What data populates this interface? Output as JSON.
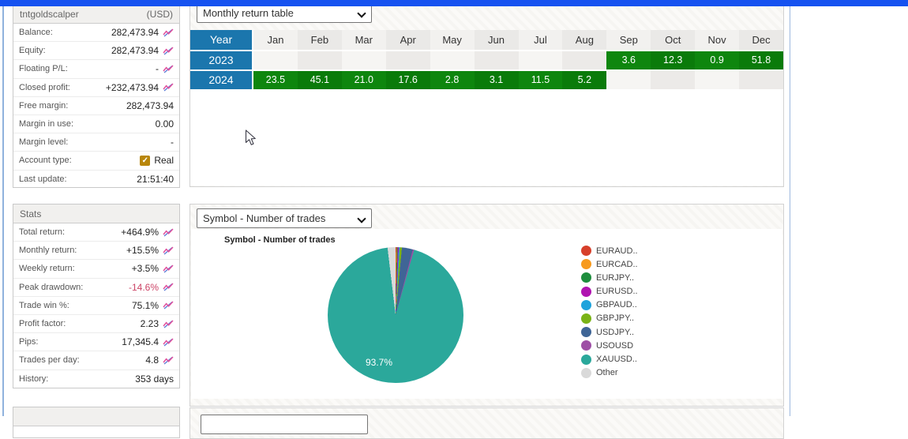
{
  "window": {
    "top_bar_color": "#1652f0"
  },
  "sidebar": {
    "account": {
      "title": "tntgoldscalper",
      "currency": "(USD)",
      "rows": [
        {
          "label": "Balance:",
          "value": "282,473.94",
          "icon": true
        },
        {
          "label": "Equity:",
          "value": "282,473.94",
          "icon": true
        },
        {
          "label": "Floating P/L:",
          "value": "-",
          "icon": true
        },
        {
          "label": "Closed profit:",
          "value": "+232,473.94",
          "icon": true
        },
        {
          "label": "Free margin:",
          "value": "282,473.94",
          "icon": false
        },
        {
          "label": "Margin in use:",
          "value": "0.00",
          "icon": false
        },
        {
          "label": "Margin level:",
          "value": "-",
          "icon": false
        },
        {
          "label": "Account type:",
          "value": "Real",
          "icon": false,
          "checkbox": true
        },
        {
          "label": "Last update:",
          "value": "21:51:40",
          "icon": false
        }
      ]
    },
    "stats": {
      "title": "Stats",
      "rows": [
        {
          "label": "Total return:",
          "value": "+464.9%",
          "icon": true
        },
        {
          "label": "Monthly return:",
          "value": "+15.5%",
          "icon": true
        },
        {
          "label": "Weekly return:",
          "value": "+3.5%",
          "icon": true
        },
        {
          "label": "Peak drawdown:",
          "value": "-14.6%",
          "icon": true,
          "value_color": "#cc4466"
        },
        {
          "label": "Trade win %:",
          "value": "75.1%",
          "icon": true
        },
        {
          "label": "Profit factor:",
          "value": "2.23",
          "icon": true
        },
        {
          "label": "Pips:",
          "value": "17,345.4",
          "icon": true
        },
        {
          "label": "Trades per day:",
          "value": "4.8",
          "icon": true
        },
        {
          "label": "History:",
          "value": "353 days",
          "icon": false
        }
      ]
    }
  },
  "main": {
    "section1": {
      "dropdown_value": "Monthly return table",
      "table": {
        "columns": [
          "Year",
          "Jan",
          "Feb",
          "Mar",
          "Apr",
          "May",
          "Jun",
          "Jul",
          "Aug",
          "Sep",
          "Oct",
          "Nov",
          "Dec"
        ],
        "rows": [
          {
            "year": "2023",
            "values": [
              null,
              null,
              null,
              null,
              null,
              null,
              null,
              null,
              "3.6",
              "12.3",
              "0.9",
              "51.8"
            ]
          },
          {
            "year": "2024",
            "values": [
              "23.5",
              "45.1",
              "21.0",
              "17.6",
              "2.8",
              "3.1",
              "11.5",
              "5.2",
              null,
              null,
              null,
              null
            ]
          }
        ],
        "year_header_color": "#1b76ad",
        "positive_cell_color": "#0c820c"
      }
    },
    "section2": {
      "dropdown_value": "Symbol - Number of trades",
      "chart_title": "Symbol - Number of trades",
      "pie_center_label": "93.7%",
      "legend": [
        {
          "label": "EURAUD..",
          "color": "#d7402b"
        },
        {
          "label": "EURCAD..",
          "color": "#f79a1e"
        },
        {
          "label": "EURJPY..",
          "color": "#1e8e3e"
        },
        {
          "label": "EURUSD..",
          "color": "#b014b0"
        },
        {
          "label": "GBPAUD..",
          "color": "#1fa3dc"
        },
        {
          "label": "GBPJPY..",
          "color": "#7ab317"
        },
        {
          "label": "USDJPY..",
          "color": "#3f6596"
        },
        {
          "label": "USOUSD",
          "color": "#9e4fa5"
        },
        {
          "label": "XAUUSD..",
          "color": "#2ba89b"
        },
        {
          "label": "Other",
          "color": "#d9d9d9"
        }
      ]
    }
  },
  "chart_data": [
    {
      "type": "table",
      "title": "Monthly return table",
      "columns": [
        "Jan",
        "Feb",
        "Mar",
        "Apr",
        "May",
        "Jun",
        "Jul",
        "Aug",
        "Sep",
        "Oct",
        "Nov",
        "Dec"
      ],
      "rows": [
        {
          "year": 2023,
          "values": [
            null,
            null,
            null,
            null,
            null,
            null,
            null,
            null,
            3.6,
            12.3,
            0.9,
            51.8
          ]
        },
        {
          "year": 2024,
          "values": [
            23.5,
            45.1,
            21.0,
            17.6,
            2.8,
            3.1,
            11.5,
            5.2,
            null,
            null,
            null,
            null
          ]
        }
      ],
      "units": "monthly return %"
    },
    {
      "type": "pie",
      "title": "Symbol - Number of trades",
      "slices": [
        {
          "label": "EURAUD",
          "color": "#d7402b",
          "pct": 0.15
        },
        {
          "label": "EURCAD",
          "color": "#f79a1e",
          "pct": 0.15
        },
        {
          "label": "EURJPY",
          "color": "#1e8e3e",
          "pct": 0.2
        },
        {
          "label": "EURUSD",
          "color": "#b014b0",
          "pct": 0.25
        },
        {
          "label": "GBPAUD",
          "color": "#1fa3dc",
          "pct": 0.25
        },
        {
          "label": "GBPJPY",
          "color": "#7ab317",
          "pct": 0.5
        },
        {
          "label": "USDJPY",
          "color": "#3f6596",
          "pct": 2.6
        },
        {
          "label": "USOUSD",
          "color": "#9e4fa5",
          "pct": 0.3
        },
        {
          "label": "XAUUSD",
          "color": "#2ba89b",
          "pct": 93.7
        },
        {
          "label": "Other",
          "color": "#d9d9d9",
          "pct": 1.9
        }
      ],
      "labeled_slice": {
        "label": "XAUUSD",
        "pct_label": "93.7%"
      },
      "legend_position": "right",
      "start_angle_deg": 0,
      "direction": "clockwise"
    }
  ]
}
